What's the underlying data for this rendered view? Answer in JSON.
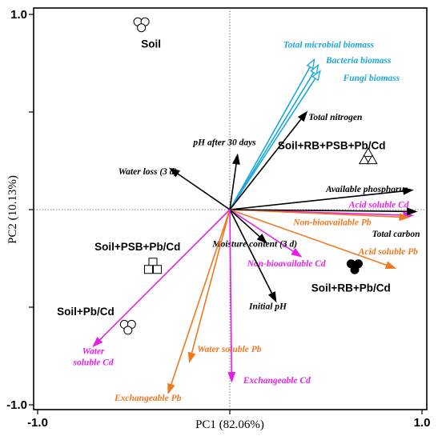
{
  "chart_data": {
    "type": "biplot",
    "xlabel": "PC1 (82.06%)",
    "ylabel": "PC2 (10.13%)",
    "xlim": [
      -1.0,
      1.0
    ],
    "ylim": [
      -1.0,
      1.0
    ],
    "x_ticks": [
      -1.0,
      0.0,
      1.0
    ],
    "x_tick_labels": [
      "-1.0",
      "",
      "1.0"
    ],
    "y_ticks": [
      -1.0,
      -0.5,
      0.0,
      0.5,
      1.0
    ],
    "y_tick_labels": [
      "-1.0",
      "",
      "",
      "",
      "1.0"
    ],
    "colors": {
      "black": "#000000",
      "blue": "#1aa7dc",
      "orange": "#f07820",
      "magenta": "#e81ee8"
    },
    "vectors": [
      {
        "name": "Total microbial biomass",
        "x": 0.44,
        "y": 0.77,
        "color": "blue",
        "head": "open",
        "lx": 0.75,
        "ly": 0.83,
        "anchor": "end"
      },
      {
        "name": "Bacteria biomass",
        "x": 0.46,
        "y": 0.74,
        "color": "blue",
        "head": "open",
        "lx": 0.5,
        "ly": 0.75,
        "anchor": "start"
      },
      {
        "name": "Fungi biomass",
        "x": 0.47,
        "y": 0.71,
        "color": "blue",
        "head": "open",
        "lx": 0.59,
        "ly": 0.66,
        "anchor": "start"
      },
      {
        "name": "Total nitrogen",
        "x": 0.4,
        "y": 0.5,
        "color": "black",
        "head": "filled",
        "lx": 0.41,
        "ly": 0.46,
        "anchor": "start"
      },
      {
        "name": "pH after 30 days",
        "x": 0.04,
        "y": 0.28,
        "color": "black",
        "head": "filled",
        "lx": -0.19,
        "ly": 0.33,
        "anchor": "start"
      },
      {
        "name": "Water loss (3 d)",
        "x": -0.31,
        "y": 0.21,
        "color": "black",
        "head": "filled",
        "lx": -0.58,
        "ly": 0.18,
        "anchor": "start"
      },
      {
        "name": "Available phosphorus",
        "x": 0.95,
        "y": 0.1,
        "color": "black",
        "head": "filled",
        "lx": 0.5,
        "ly": 0.09,
        "anchor": "start"
      },
      {
        "name": "Acid soluble Cd",
        "x": 0.95,
        "y": -0.03,
        "color": "magenta",
        "head": "filled",
        "lx": 0.62,
        "ly": 0.01,
        "anchor": "start"
      },
      {
        "name": "Non-bioavailable Pb",
        "x": 0.93,
        "y": -0.04,
        "color": "orange",
        "head": "filled",
        "lx": 0.33,
        "ly": -0.08,
        "anchor": "start"
      },
      {
        "name": "Total carbon",
        "x": 0.97,
        "y": -0.01,
        "color": "black",
        "head": "filled",
        "lx": 0.74,
        "ly": -0.14,
        "anchor": "start"
      },
      {
        "name": "Acid soluble Pb",
        "x": 0.86,
        "y": -0.3,
        "color": "orange",
        "head": "filled",
        "lx": 0.67,
        "ly": -0.23,
        "anchor": "start"
      },
      {
        "name": "Non-bioavailable Cd",
        "x": 0.37,
        "y": -0.24,
        "color": "magenta",
        "head": "filled",
        "lx": 0.09,
        "ly": -0.29,
        "anchor": "start"
      },
      {
        "name": "Moisture content (3 d)",
        "x": 0.19,
        "y": -0.17,
        "color": "black",
        "head": "filled",
        "lx": -0.09,
        "ly": -0.19,
        "anchor": "start"
      },
      {
        "name": "Initial pH",
        "x": 0.24,
        "y": -0.47,
        "color": "black",
        "head": "filled",
        "lx": 0.1,
        "ly": -0.51,
        "anchor": "start"
      },
      {
        "name": "Water soluble Pb",
        "x": -0.21,
        "y": -0.78,
        "color": "orange",
        "head": "filled",
        "lx": -0.17,
        "ly": -0.73,
        "anchor": "start"
      },
      {
        "name": "Exchangeable Pb",
        "x": -0.32,
        "y": -0.94,
        "color": "orange",
        "head": "filled",
        "lx": -0.6,
        "ly": -0.98,
        "anchor": "start"
      },
      {
        "name": "Exchangeable Cd",
        "x": 0.01,
        "y": -0.88,
        "color": "magenta",
        "head": "filled",
        "lx": 0.07,
        "ly": -0.89,
        "anchor": "start"
      },
      {
        "name": "Water|soluble Cd",
        "x": -0.71,
        "y": -0.7,
        "color": "magenta",
        "head": "filled",
        "lx": -0.71,
        "ly": -0.74,
        "anchor": "middle"
      }
    ],
    "samples": [
      {
        "name": "Soil",
        "marker": "circle",
        "open": true,
        "cx": -0.46,
        "cy": 0.95,
        "lx": -0.41,
        "ly": 0.83,
        "anchor": "middle"
      },
      {
        "name": "Soil+RB+PSB+Pb/Cd",
        "marker": "triangle",
        "open": true,
        "cx": 0.72,
        "cy": 0.27,
        "lx": 0.53,
        "ly": 0.31,
        "anchor": "middle"
      },
      {
        "name": "Soil+PSB+Pb/Cd",
        "marker": "square",
        "open": true,
        "cx": -0.4,
        "cy": -0.29,
        "lx": -0.48,
        "ly": -0.21,
        "anchor": "middle"
      },
      {
        "name": "Soil+RB+Pb/Cd",
        "marker": "circle",
        "open": false,
        "cx": 0.65,
        "cy": -0.29,
        "lx": 0.63,
        "ly": -0.42,
        "anchor": "middle"
      },
      {
        "name": "Soil+Pb/Cd",
        "marker": "circle",
        "open": true,
        "cx": -0.53,
        "cy": -0.6,
        "lx": -0.75,
        "ly": -0.54,
        "anchor": "middle"
      }
    ]
  }
}
